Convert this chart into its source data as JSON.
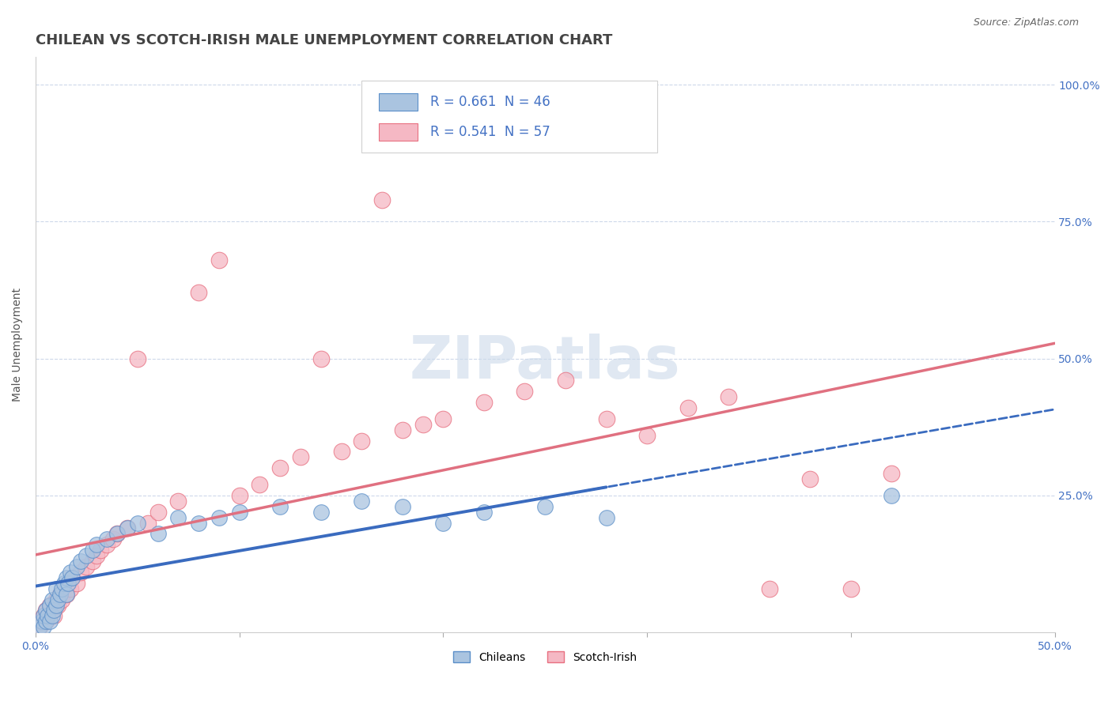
{
  "title": "CHILEAN VS SCOTCH-IRISH MALE UNEMPLOYMENT CORRELATION CHART",
  "source": "Source: ZipAtlas.com",
  "ylabel": "Male Unemployment",
  "xlim": [
    0.0,
    0.5
  ],
  "ylim": [
    0.0,
    1.05
  ],
  "xticks": [
    0.0,
    0.1,
    0.2,
    0.3,
    0.4,
    0.5
  ],
  "xtick_labels": [
    "0.0%",
    "",
    "",
    "",
    "",
    "50.0%"
  ],
  "ytick_vals_right": [
    0.25,
    0.5,
    0.75,
    1.0
  ],
  "ytick_labels_right": [
    "25.0%",
    "50.0%",
    "75.0%",
    "100.0%"
  ],
  "R_chilean": 0.661,
  "N_chilean": 46,
  "R_scotch": 0.541,
  "N_scotch": 57,
  "chilean_color": "#aac4e0",
  "chilean_edge": "#5b8fc9",
  "scotch_color": "#f5b8c4",
  "scotch_edge": "#e87080",
  "chilean_line_color": "#3a6bbf",
  "scotch_line_color": "#e07080",
  "background_color": "#ffffff",
  "grid_color": "#c8d4e8",
  "watermark": "ZIPatlas",
  "watermark_color": "#ccdaea",
  "title_color": "#444444",
  "axis_color": "#4472c4",
  "ylabel_color": "#555555",
  "chilean_scatter_x": [
    0.002,
    0.003,
    0.004,
    0.004,
    0.005,
    0.005,
    0.006,
    0.007,
    0.007,
    0.008,
    0.008,
    0.009,
    0.01,
    0.01,
    0.011,
    0.012,
    0.013,
    0.014,
    0.015,
    0.015,
    0.016,
    0.017,
    0.018,
    0.02,
    0.022,
    0.025,
    0.028,
    0.03,
    0.035,
    0.04,
    0.045,
    0.05,
    0.06,
    0.07,
    0.08,
    0.09,
    0.1,
    0.12,
    0.14,
    0.16,
    0.18,
    0.2,
    0.22,
    0.25,
    0.28,
    0.42
  ],
  "chilean_scatter_y": [
    0.01,
    0.02,
    0.01,
    0.03,
    0.02,
    0.04,
    0.03,
    0.02,
    0.05,
    0.03,
    0.06,
    0.04,
    0.05,
    0.08,
    0.06,
    0.07,
    0.08,
    0.09,
    0.07,
    0.1,
    0.09,
    0.11,
    0.1,
    0.12,
    0.13,
    0.14,
    0.15,
    0.16,
    0.17,
    0.18,
    0.19,
    0.2,
    0.18,
    0.21,
    0.2,
    0.21,
    0.22,
    0.23,
    0.22,
    0.24,
    0.23,
    0.2,
    0.22,
    0.23,
    0.21,
    0.25
  ],
  "scotch_scatter_x": [
    0.002,
    0.003,
    0.004,
    0.005,
    0.005,
    0.006,
    0.007,
    0.008,
    0.009,
    0.01,
    0.01,
    0.011,
    0.012,
    0.013,
    0.014,
    0.015,
    0.016,
    0.017,
    0.018,
    0.02,
    0.022,
    0.025,
    0.028,
    0.03,
    0.032,
    0.035,
    0.038,
    0.04,
    0.045,
    0.05,
    0.055,
    0.06,
    0.07,
    0.08,
    0.09,
    0.1,
    0.11,
    0.12,
    0.13,
    0.14,
    0.16,
    0.18,
    0.2,
    0.22,
    0.24,
    0.26,
    0.28,
    0.3,
    0.32,
    0.34,
    0.36,
    0.38,
    0.4,
    0.42,
    0.15,
    0.17,
    0.19
  ],
  "scotch_scatter_y": [
    0.01,
    0.02,
    0.03,
    0.02,
    0.04,
    0.03,
    0.05,
    0.04,
    0.03,
    0.05,
    0.06,
    0.05,
    0.07,
    0.06,
    0.08,
    0.07,
    0.09,
    0.08,
    0.1,
    0.09,
    0.11,
    0.12,
    0.13,
    0.14,
    0.15,
    0.16,
    0.17,
    0.18,
    0.19,
    0.5,
    0.2,
    0.22,
    0.24,
    0.62,
    0.68,
    0.25,
    0.27,
    0.3,
    0.32,
    0.5,
    0.35,
    0.37,
    0.39,
    0.42,
    0.44,
    0.46,
    0.39,
    0.36,
    0.41,
    0.43,
    0.08,
    0.28,
    0.08,
    0.29,
    0.33,
    0.79,
    0.38
  ],
  "title_fontsize": 13,
  "label_fontsize": 10,
  "legend_fontsize": 12,
  "source_fontsize": 9
}
